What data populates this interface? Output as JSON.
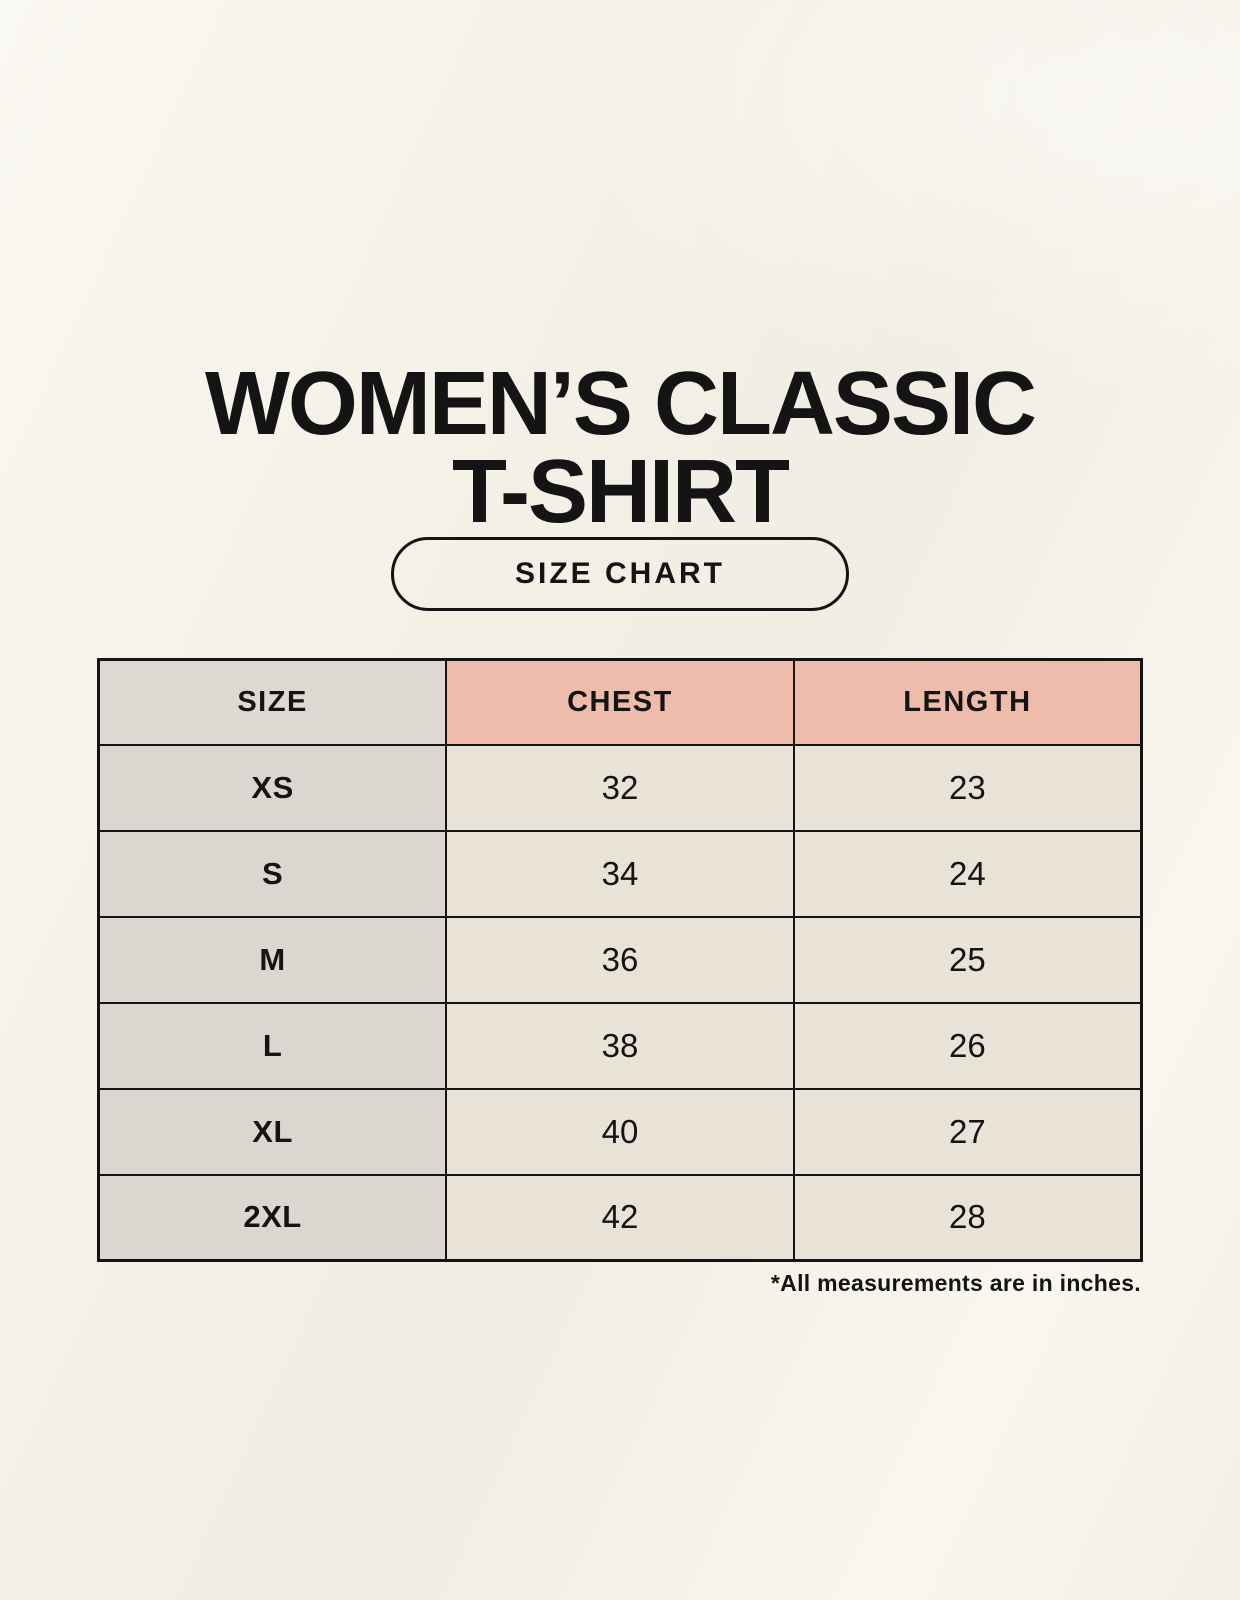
{
  "header": {
    "title_line1": "WOMEN’S CLASSIC",
    "title_line2": "T-SHIRT",
    "badge_label": "SIZE CHART"
  },
  "table": {
    "headers": [
      "SIZE",
      "CHEST",
      "LENGTH"
    ],
    "rows": [
      {
        "size": "XS",
        "chest": "32",
        "length": "23"
      },
      {
        "size": "S",
        "chest": "34",
        "length": "24"
      },
      {
        "size": "M",
        "chest": "36",
        "length": "25"
      },
      {
        "size": "L",
        "chest": "38",
        "length": "26"
      },
      {
        "size": "XL",
        "chest": "40",
        "length": "27"
      },
      {
        "size": "2XL",
        "chest": "42",
        "length": "28"
      }
    ]
  },
  "footer": {
    "note": "*All measurements are in inches."
  },
  "colors": {
    "background": "#f6f2e8",
    "size_column_bg": "#dcd6d0",
    "size_header_bg": "#ddd8d2",
    "measure_header_bg": "#eebcab",
    "value_cell_bg": "#e9e3d7",
    "border": "#141414",
    "text": "#141414"
  },
  "chart_data": {
    "type": "table",
    "title": "WOMEN’S CLASSIC T-SHIRT",
    "subtitle": "SIZE CHART",
    "columns": [
      "SIZE",
      "CHEST",
      "LENGTH"
    ],
    "rows": [
      [
        "XS",
        32,
        23
      ],
      [
        "S",
        34,
        24
      ],
      [
        "M",
        36,
        25
      ],
      [
        "L",
        38,
        26
      ],
      [
        "XL",
        40,
        27
      ],
      [
        "2XL",
        42,
        28
      ]
    ],
    "units": "inches",
    "note": "*All measurements are in inches."
  }
}
